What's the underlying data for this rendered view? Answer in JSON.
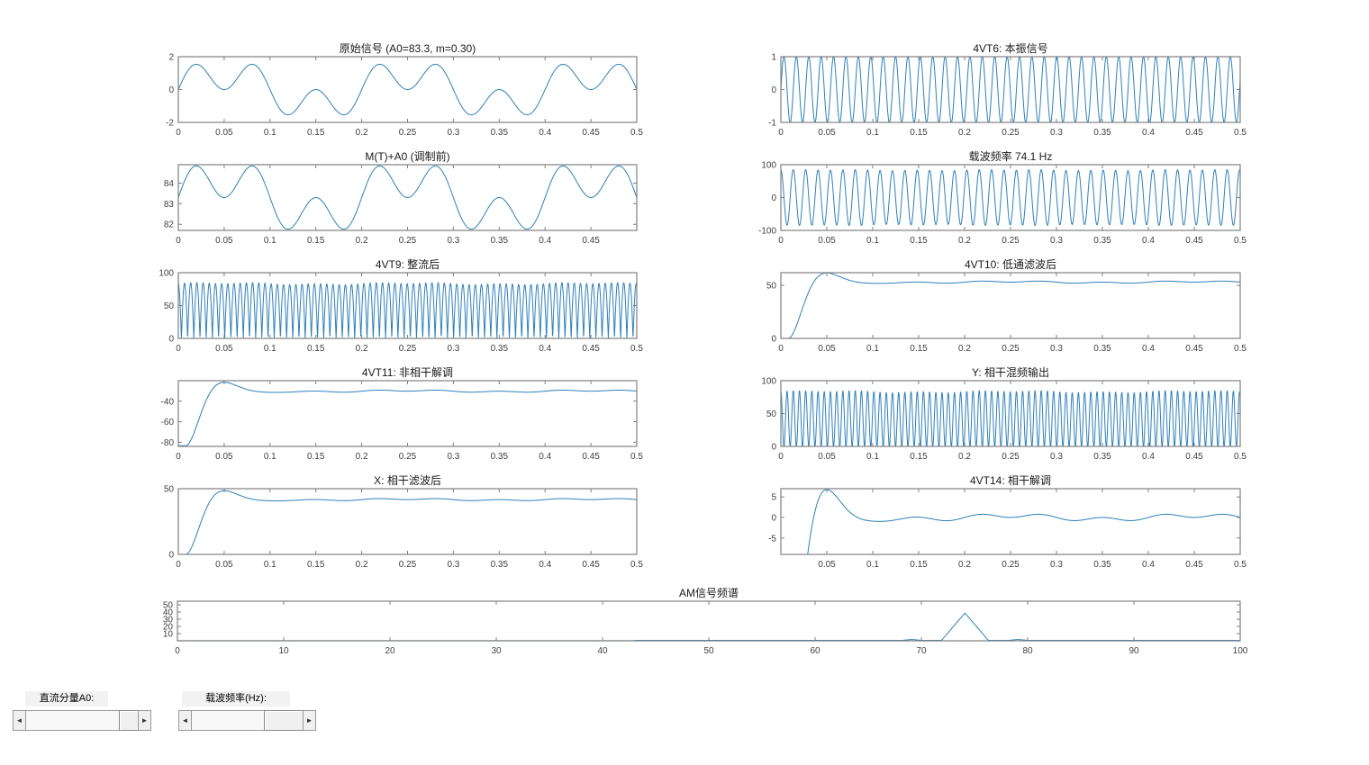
{
  "colors": {
    "line": "#2e80b9",
    "frame": "#808080",
    "tick_label": "#404040",
    "title": "#1a1a1a"
  },
  "controls": {
    "a0_label": "直流分量A0:",
    "fc_label": "载波频率(Hz):"
  },
  "chart_data": {
    "type": "line",
    "message": {
      "components": [
        {
          "f": 5,
          "a": 1
        },
        {
          "f": 15,
          "a": 1
        }
      ]
    },
    "carrier_freq_hz": 74.1,
    "dc_component_a0": 83.3,
    "modulation_index": 0.3,
    "plots": [
      {
        "title": "原始信号 (A0=83.3, m=0.30)",
        "xlim": [
          0,
          0.5
        ],
        "ylim": [
          -2,
          2
        ],
        "xticks": [
          0,
          0.05,
          0.1,
          0.15,
          0.2,
          0.25,
          0.3,
          0.35,
          0.4,
          0.45,
          0.5
        ],
        "xtick_labels": [
          "0",
          "0.05",
          "0.1",
          "0.15",
          "0.2",
          "0.25",
          "0.3",
          "0.35",
          "0.4",
          "0.45",
          "0.5"
        ],
        "yticks": [
          -2,
          0,
          2
        ],
        "ytick_labels": [
          "-2",
          "0",
          "2"
        ],
        "signal": {
          "kind": "message",
          "offset": 0
        }
      },
      {
        "title": "M(T)+A0 (调制前)",
        "xlim": [
          0,
          0.5
        ],
        "ylim": [
          81.7,
          84.9
        ],
        "xticks": [
          0,
          0.05,
          0.1,
          0.15,
          0.2,
          0.25,
          0.3,
          0.35,
          0.4,
          0.45,
          0.5
        ],
        "xtick_labels": [
          "0",
          "0.05",
          "0.1",
          "0.15",
          "0.2",
          "0.25",
          "0.3",
          "0.35",
          "0.4",
          "0.45",
          ""
        ],
        "yticks": [
          82,
          83,
          84
        ],
        "ytick_labels": [
          "82",
          "83",
          "84"
        ],
        "signal": {
          "kind": "message",
          "offset": 83.3
        }
      },
      {
        "title": "4VT6: 本振信号",
        "xlim": [
          0,
          0.5
        ],
        "ylim": [
          -1,
          1
        ],
        "xticks": [
          0,
          0.05,
          0.1,
          0.15,
          0.2,
          0.25,
          0.3,
          0.35,
          0.4,
          0.45,
          0.5
        ],
        "xtick_labels": [
          "0",
          "0.05",
          "0.1",
          "0.15",
          "0.2",
          "0.25",
          "0.3",
          "0.35",
          "0.4",
          "0.45",
          "0.5"
        ],
        "yticks": [
          -1,
          0,
          1
        ],
        "ytick_labels": [
          "-1",
          "0",
          "1"
        ],
        "signal": {
          "kind": "sine",
          "f": 74.1
        }
      },
      {
        "title": "载波频率 74.1 Hz",
        "xlim": [
          0,
          0.5
        ],
        "ylim": [
          -100,
          100
        ],
        "xticks": [
          0,
          0.05,
          0.1,
          0.15,
          0.2,
          0.25,
          0.3,
          0.35,
          0.4,
          0.45,
          0.5
        ],
        "xtick_labels": [
          "0",
          "0.05",
          "0.1",
          "0.15",
          "0.2",
          "0.25",
          "0.3",
          "0.35",
          "0.4",
          "0.45",
          "0.5"
        ],
        "yticks": [
          -100,
          0,
          100
        ],
        "ytick_labels": [
          "-100",
          "0",
          "100"
        ],
        "signal": {
          "kind": "am",
          "A0": 83.3,
          "fc": 74.1
        }
      },
      {
        "title": "4VT9: 整流后",
        "xlim": [
          0,
          0.5
        ],
        "ylim": [
          0,
          100
        ],
        "xticks": [
          0,
          0.05,
          0.1,
          0.15,
          0.2,
          0.25,
          0.3,
          0.35,
          0.4,
          0.45,
          0.5
        ],
        "xtick_labels": [
          "0",
          "0.05",
          "0.1",
          "0.15",
          "0.2",
          "0.25",
          "0.3",
          "0.35",
          "0.4",
          "0.45",
          "0.5"
        ],
        "yticks": [
          0,
          50,
          100
        ],
        "ytick_labels": [
          "0",
          "50",
          "100"
        ],
        "signal": {
          "kind": "abs_am",
          "A0": 83.3,
          "fc": 74.1
        }
      },
      {
        "title": "4VT10: 低通滤波后",
        "xlim": [
          0,
          0.5
        ],
        "ylim": [
          0,
          62
        ],
        "xticks": [
          0,
          0.05,
          0.1,
          0.15,
          0.2,
          0.25,
          0.3,
          0.35,
          0.4,
          0.45,
          0.5
        ],
        "xtick_labels": [
          "0",
          "0.05",
          "0.1",
          "0.15",
          "0.2",
          "0.25",
          "0.3",
          "0.35",
          "0.4",
          "0.45",
          "0.5"
        ],
        "yticks": [
          0,
          50
        ],
        "ytick_labels": [
          "0",
          "50"
        ],
        "signal": {
          "kind": "lpf_step",
          "target": 53.1,
          "ripple_gain": 0.64,
          "offset": 0,
          "overshoot_zeta": 0.5,
          "peak_time": 0.05,
          "delay": 0.008
        }
      },
      {
        "title": "4VT11: 非相干解调",
        "xlim": [
          0,
          0.5
        ],
        "ylim": [
          -84,
          -20
        ],
        "xticks": [
          0,
          0.05,
          0.1,
          0.15,
          0.2,
          0.25,
          0.3,
          0.35,
          0.4,
          0.45,
          0.5
        ],
        "xtick_labels": [
          "0",
          "0.05",
          "0.1",
          "0.15",
          "0.2",
          "0.25",
          "0.3",
          "0.35",
          "0.4",
          "0.45",
          "0.5"
        ],
        "yticks": [
          -80,
          -60,
          -40
        ],
        "ytick_labels": [
          "-80",
          "-60",
          "-40"
        ],
        "signal": {
          "kind": "lpf_step",
          "target": 53.1,
          "ripple_gain": 0.64,
          "offset": -83.3,
          "overshoot_zeta": 0.5,
          "peak_time": 0.05,
          "delay": 0.008
        }
      },
      {
        "title": "Y: 相干混频输出",
        "xlim": [
          0,
          0.5
        ],
        "ylim": [
          0,
          100
        ],
        "xticks": [
          0,
          0.05,
          0.1,
          0.15,
          0.2,
          0.25,
          0.3,
          0.35,
          0.4,
          0.45,
          0.5
        ],
        "xtick_labels": [
          "0",
          "0.05",
          "0.1",
          "0.15",
          "0.2",
          "0.25",
          "0.3",
          "0.35",
          "0.4",
          "0.45",
          "0.5"
        ],
        "yticks": [
          0,
          50,
          100
        ],
        "ytick_labels": [
          "0",
          "50",
          "100"
        ],
        "signal": {
          "kind": "mixer",
          "A0": 83.3,
          "fc": 74.1
        }
      },
      {
        "title": "X: 相干滤波后",
        "xlim": [
          0,
          0.5
        ],
        "ylim": [
          0,
          50
        ],
        "xticks": [
          0,
          0.05,
          0.1,
          0.15,
          0.2,
          0.25,
          0.3,
          0.35,
          0.4,
          0.45,
          0.5
        ],
        "xtick_labels": [
          "0",
          "0.05",
          "0.1",
          "0.15",
          "0.2",
          "0.25",
          "0.3",
          "0.35",
          "0.4",
          "0.45",
          "0.5"
        ],
        "yticks": [
          0,
          50
        ],
        "ytick_labels": [
          "0",
          "50"
        ],
        "signal": {
          "kind": "lpf_step",
          "target": 41.7,
          "ripple_gain": 0.5,
          "offset": 0,
          "overshoot_zeta": 0.5,
          "peak_time": 0.05,
          "delay": 0.008
        }
      },
      {
        "title": "4VT14: 相干解调",
        "xlim": [
          0,
          0.5
        ],
        "ylim": [
          -9,
          7
        ],
        "xticks": [
          0,
          0.05,
          0.1,
          0.15,
          0.2,
          0.25,
          0.3,
          0.35,
          0.4,
          0.45,
          0.5
        ],
        "xtick_labels": [
          "",
          "0.05",
          "0.1",
          "0.15",
          "0.2",
          "0.25",
          "0.3",
          "0.35",
          "0.4",
          "0.45",
          "0.5"
        ],
        "yticks": [
          -5,
          0,
          5
        ],
        "ytick_labels": [
          "-5",
          "0",
          "5"
        ],
        "signal": {
          "kind": "lpf_step",
          "target": 41.7,
          "ripple_gain": 0.5,
          "offset": -41.7,
          "overshoot_zeta": 0.5,
          "peak_time": 0.05,
          "delay": 0.008
        }
      },
      {
        "title": "AM信号频谱",
        "xlim": [
          0,
          100
        ],
        "ylim": [
          0,
          55
        ],
        "xticks": [
          0,
          10,
          20,
          30,
          40,
          50,
          60,
          70,
          80,
          90,
          100
        ],
        "xtick_labels": [
          "0",
          "10",
          "20",
          "30",
          "40",
          "50",
          "60",
          "70",
          "80",
          "90",
          "100"
        ],
        "yticks": [
          10,
          20,
          30,
          40,
          50
        ],
        "ytick_labels": [
          "10",
          "20",
          "30",
          "40",
          "50"
        ],
        "signal": {
          "kind": "spectrum",
          "peak_freq": 74.1,
          "peak_height": 38,
          "peak_halfwidth": 2.2,
          "baseline": 0.6,
          "baseline_visible_from": 43,
          "sidebands": [
            {
              "f": 69.1,
              "h": 1.2
            },
            {
              "f": 79.1,
              "h": 1.2
            }
          ]
        }
      }
    ]
  }
}
